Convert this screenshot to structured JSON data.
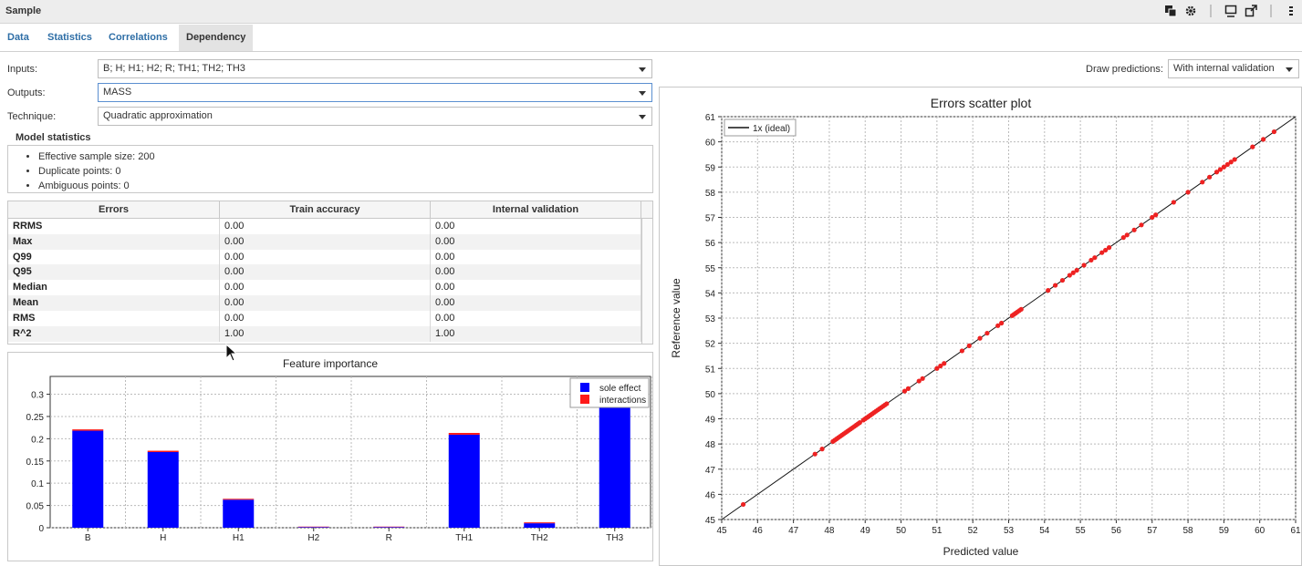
{
  "window": {
    "title": "Sample"
  },
  "tabs": [
    {
      "label": "Data"
    },
    {
      "label": "Statistics"
    },
    {
      "label": "Correlations"
    },
    {
      "label": "Dependency"
    }
  ],
  "form": {
    "inputs_label": "Inputs:",
    "inputs_value": "B; H; H1; H2; R; TH1; TH2; TH3",
    "outputs_label": "Outputs:",
    "outputs_value": "MASS",
    "technique_label": "Technique:",
    "technique_value": "Quadratic approximation"
  },
  "draw_predictions": {
    "label": "Draw predictions:",
    "value": "With internal validation"
  },
  "model_statistics": {
    "title": "Model statistics",
    "items": [
      "Effective sample size: 200",
      "Duplicate points: 0",
      "Ambiguous points: 0"
    ]
  },
  "errors_table": {
    "headers": [
      "Errors",
      "Train accuracy",
      "Internal validation"
    ],
    "rows": [
      [
        "RRMS",
        "0.00",
        "0.00"
      ],
      [
        "Max",
        "0.00",
        "0.00"
      ],
      [
        "Q99",
        "0.00",
        "0.00"
      ],
      [
        "Q95",
        "0.00",
        "0.00"
      ],
      [
        "Median",
        "0.00",
        "0.00"
      ],
      [
        "Mean",
        "0.00",
        "0.00"
      ],
      [
        "RMS",
        "0.00",
        "0.00"
      ],
      [
        "R^2",
        "1.00",
        "1.00"
      ]
    ]
  },
  "chart_data": [
    {
      "type": "bar",
      "title": "Feature importance",
      "categories": [
        "B",
        "H",
        "H1",
        "H2",
        "R",
        "TH1",
        "TH2",
        "TH3"
      ],
      "series": [
        {
          "name": "sole effect",
          "color": "#0000ff",
          "values": [
            0.218,
            0.17,
            0.063,
            0.0015,
            0.0015,
            0.209,
            0.01,
            0.295
          ]
        },
        {
          "name": "interactions",
          "color": "#ff1a1a",
          "values": [
            0.003,
            0.003,
            0.002,
            0.001,
            0.001,
            0.004,
            0.002,
            0.003
          ]
        }
      ],
      "ylim": [
        0,
        0.34
      ],
      "yticks": [
        "0",
        "0.05",
        "0.1",
        "0.15",
        "0.2",
        "0.25",
        "0.3"
      ],
      "legend": "top-right",
      "grid": true
    },
    {
      "type": "scatter",
      "title": "Errors scatter plot",
      "xlabel": "Predicted value",
      "ylabel": "Reference value",
      "xlim": [
        45,
        61
      ],
      "ylim": [
        45,
        61
      ],
      "xticks": [
        "45",
        "46",
        "47",
        "48",
        "49",
        "50",
        "51",
        "52",
        "53",
        "54",
        "55",
        "56",
        "57",
        "58",
        "59",
        "60",
        "61"
      ],
      "yticks": [
        "45",
        "46",
        "47",
        "48",
        "49",
        "50",
        "51",
        "52",
        "53",
        "54",
        "55",
        "56",
        "57",
        "58",
        "59",
        "60",
        "61"
      ],
      "ideal_line_label": "1x (ideal)",
      "legend": "top-left",
      "grid": true,
      "point_color": "#ee2222",
      "points": [
        45.6,
        47.6,
        47.8,
        48.1,
        48.15,
        48.2,
        48.25,
        48.3,
        48.35,
        48.4,
        48.45,
        48.5,
        48.55,
        48.6,
        48.65,
        48.7,
        48.75,
        48.8,
        48.85,
        48.95,
        49.0,
        49.05,
        49.1,
        49.15,
        49.2,
        49.25,
        49.3,
        49.35,
        49.4,
        49.45,
        49.5,
        49.55,
        49.6,
        50.1,
        50.2,
        50.5,
        50.6,
        51.0,
        51.1,
        51.2,
        51.7,
        51.9,
        52.2,
        52.4,
        52.7,
        52.8,
        53.1,
        53.15,
        53.2,
        53.25,
        53.3,
        53.35,
        54.1,
        54.3,
        54.5,
        54.7,
        54.8,
        54.9,
        55.1,
        55.3,
        55.4,
        55.6,
        55.7,
        55.8,
        56.2,
        56.3,
        56.5,
        56.7,
        57.0,
        57.1,
        57.6,
        58.0,
        58.4,
        58.6,
        58.8,
        58.9,
        59.0,
        59.1,
        59.2,
        59.3,
        59.8,
        60.1,
        60.4
      ]
    }
  ]
}
